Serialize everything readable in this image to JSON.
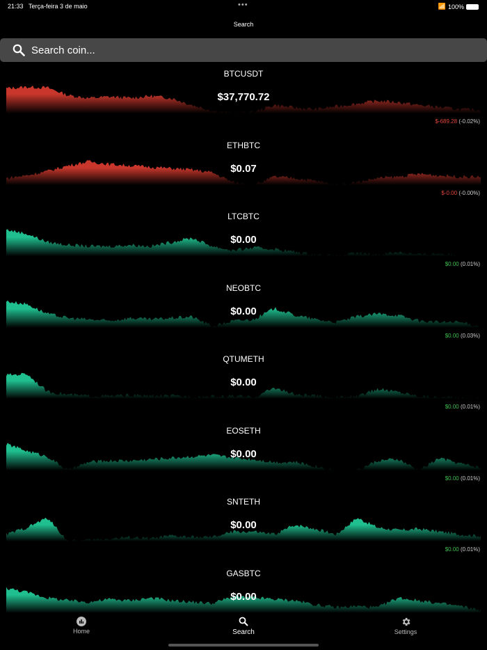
{
  "status": {
    "time": "21:33",
    "date": "Terça-feira 3 de maio",
    "battery": "100%"
  },
  "nav": {
    "title": "Search"
  },
  "search": {
    "placeholder": "Search coin..."
  },
  "colors": {
    "down": "#c9372c",
    "up": "#1fbf8f",
    "down_text": "#e0463a",
    "up_text": "#3fbf4f"
  },
  "coins": [
    {
      "symbol": "BTCUSDT",
      "price": "$37,770.72",
      "change": "$-689.28",
      "percent": "(-0.02%)",
      "trend": "down",
      "spark": [
        36,
        38,
        37,
        26,
        22,
        24,
        22,
        25,
        22,
        12,
        4,
        0,
        2,
        12,
        8,
        6,
        10,
        14,
        18,
        16,
        12,
        9,
        6,
        5
      ]
    },
    {
      "symbol": "ETHBTC",
      "price": "$0.07",
      "change": "$-0.00",
      "percent": "(-0.00%)",
      "trend": "down",
      "spark": [
        10,
        14,
        20,
        28,
        34,
        30,
        28,
        26,
        24,
        22,
        18,
        4,
        0,
        12,
        10,
        6,
        0,
        4,
        10,
        12,
        16,
        14,
        12,
        12
      ]
    },
    {
      "symbol": "LTCBTC",
      "price": "$0.00",
      "change": "$0.00",
      "percent": "(0.01%)",
      "trend": "up",
      "spark": [
        38,
        32,
        20,
        16,
        14,
        14,
        16,
        14,
        20,
        26,
        14,
        8,
        12,
        10,
        6,
        2,
        0,
        4,
        2,
        6,
        2,
        4,
        0,
        0
      ]
    },
    {
      "symbol": "NEOBTC",
      "price": "$0.00",
      "change": "$0.00",
      "percent": "(0.03%)",
      "trend": "up",
      "spark": [
        38,
        34,
        20,
        14,
        12,
        10,
        14,
        12,
        14,
        16,
        2,
        10,
        12,
        28,
        18,
        12,
        8,
        16,
        20,
        18,
        10,
        8,
        8,
        2
      ]
    },
    {
      "symbol": "QTUMETH",
      "price": "$0.00",
      "change": "$0.00",
      "percent": "(0.01%)",
      "trend": "up",
      "spark": [
        34,
        36,
        10,
        6,
        4,
        4,
        5,
        4,
        4,
        3,
        3,
        4,
        2,
        16,
        6,
        4,
        2,
        3,
        14,
        10,
        4,
        2,
        1,
        0
      ]
    },
    {
      "symbol": "EOSETH",
      "price": "$0.00",
      "change": "$0.00",
      "percent": "(0.01%)",
      "trend": "up",
      "spark": [
        38,
        28,
        20,
        0,
        12,
        14,
        14,
        16,
        18,
        20,
        22,
        18,
        16,
        12,
        12,
        6,
        0,
        0,
        14,
        16,
        0,
        18,
        10,
        4
      ]
    },
    {
      "symbol": "SNTETH",
      "price": "$0.00",
      "change": "$0.00",
      "percent": "(0.01%)",
      "trend": "up",
      "spark": [
        10,
        20,
        34,
        0,
        2,
        4,
        6,
        4,
        8,
        6,
        6,
        14,
        14,
        10,
        24,
        18,
        10,
        34,
        20,
        16,
        18,
        14,
        10,
        8
      ]
    },
    {
      "symbol": "GASBTC",
      "price": "$0.00",
      "change": "",
      "percent": "",
      "trend": "up",
      "spark": [
        36,
        30,
        22,
        18,
        16,
        20,
        18,
        22,
        18,
        16,
        14,
        24,
        22,
        20,
        18,
        12,
        8,
        10,
        8,
        22,
        18,
        14,
        10,
        4
      ]
    }
  ],
  "tabs": [
    {
      "label": "Home",
      "icon": "chart-circle-icon"
    },
    {
      "label": "Search",
      "icon": "search-icon"
    },
    {
      "label": "Settings",
      "icon": "gear-icon"
    }
  ]
}
